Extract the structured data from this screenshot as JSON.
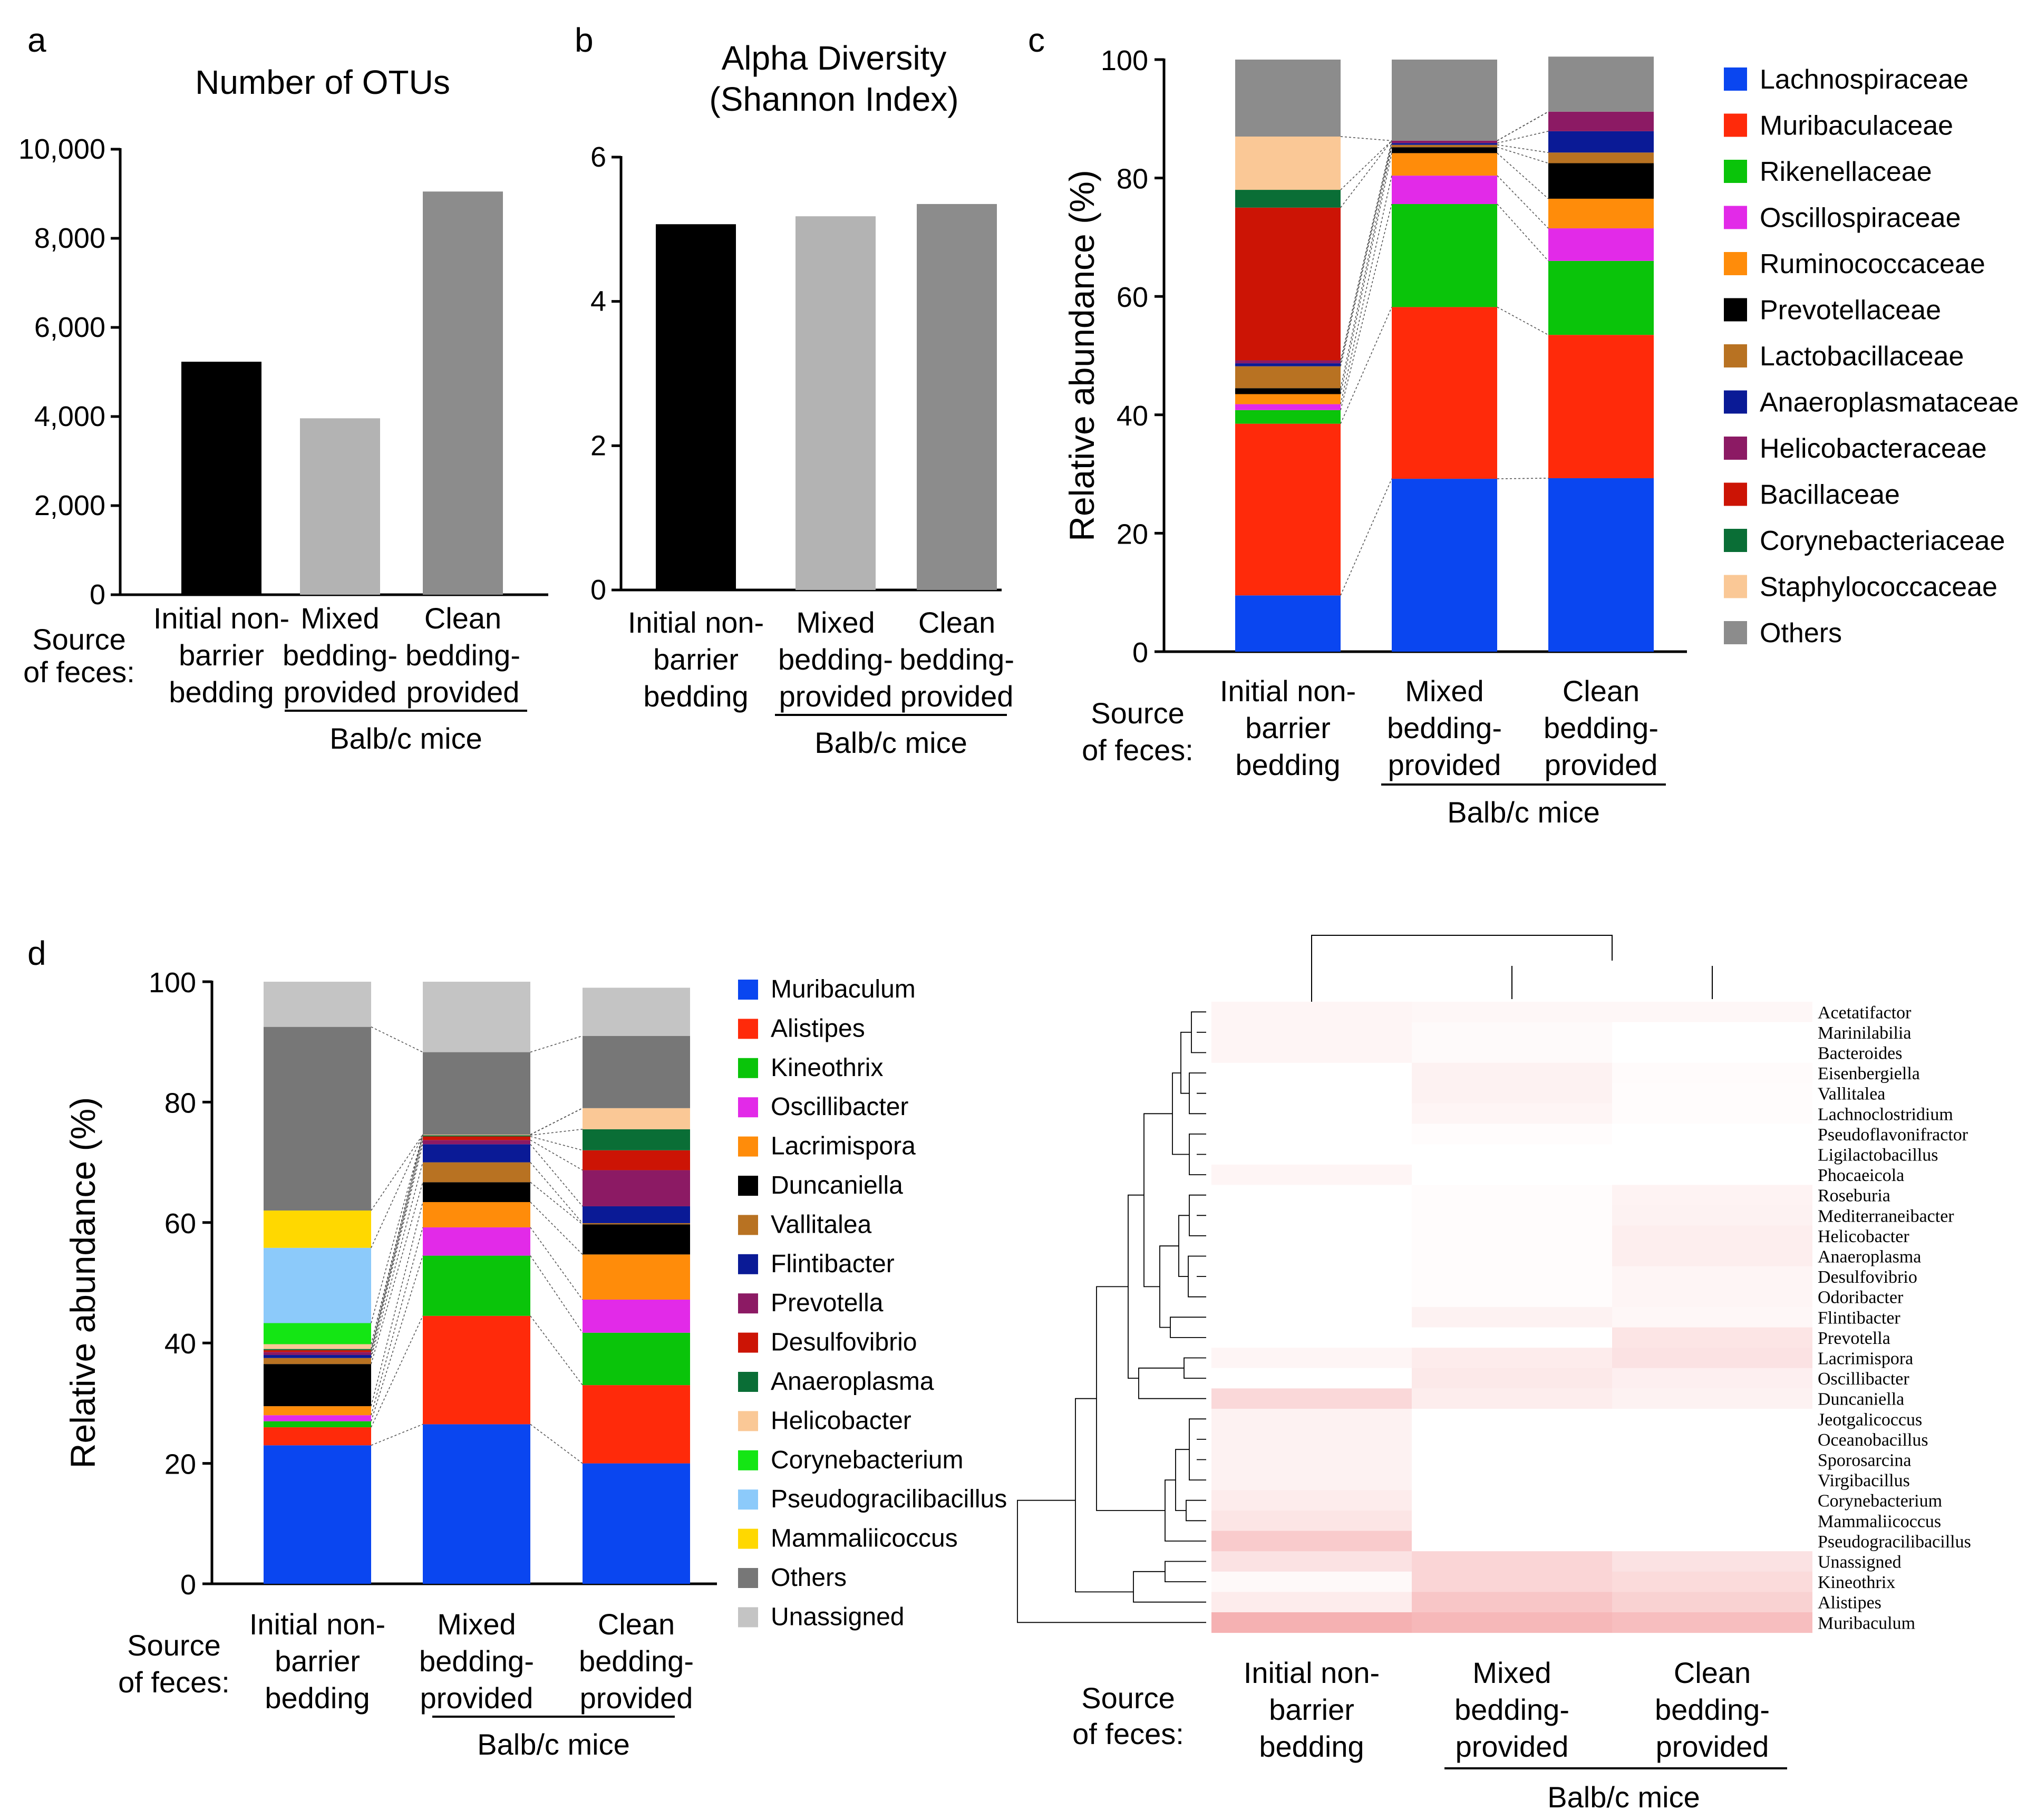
{
  "panel_a": {
    "letter": "a",
    "chart_data": {
      "type": "bar",
      "title": "Number of OTUs",
      "categories": [
        [
          "Initial non-",
          "barrier",
          "bedding"
        ],
        [
          "Mixed",
          "bedding-",
          "provided"
        ],
        [
          "Clean",
          "bedding-",
          "provided"
        ]
      ],
      "values": [
        5230,
        3960,
        9050
      ],
      "colors": [
        "#000000",
        "#b3b3b3",
        "#8c8c8c"
      ],
      "ylim": [
        0,
        10000
      ],
      "yticks": [
        0,
        2000,
        4000,
        6000,
        8000,
        10000
      ],
      "ytick_labels": [
        "0",
        "2,000",
        "4,000",
        "6,000",
        "8,000",
        "10,000"
      ],
      "source_label": [
        "Source",
        "of feces:"
      ],
      "group_label": "Balb/c mice"
    }
  },
  "panel_b": {
    "letter": "b",
    "chart_data": {
      "type": "bar",
      "title": [
        "Alpha Diversity",
        "(Shannon Index)"
      ],
      "categories": [
        [
          "Initial non-",
          "barrier",
          "bedding"
        ],
        [
          "Mixed",
          "bedding-",
          "provided"
        ],
        [
          "Clean",
          "bedding-",
          "provided"
        ]
      ],
      "values": [
        5.07,
        5.18,
        5.35
      ],
      "colors": [
        "#000000",
        "#b3b3b3",
        "#8c8c8c"
      ],
      "ylim": [
        0,
        6
      ],
      "yticks": [
        0,
        2,
        4,
        6
      ],
      "ytick_labels": [
        "0",
        "2",
        "4",
        "6"
      ],
      "source_label": [
        "Source",
        "of feces:"
      ],
      "group_label": "Balb/c mice"
    }
  },
  "panel_c": {
    "letter": "c",
    "chart_data": {
      "type": "stacked-bar",
      "ylabel": "Relative abundance (%)",
      "ylim": [
        0,
        100
      ],
      "yticks": [
        0,
        20,
        40,
        60,
        80,
        100
      ],
      "categories": [
        [
          "Initial non-",
          "barrier",
          "bedding"
        ],
        [
          "Mixed",
          "bedding-",
          "provided"
        ],
        [
          "Clean",
          "bedding-",
          "provided"
        ]
      ],
      "source_label": [
        "Source",
        "of feces:"
      ],
      "group_label": "Balb/c mice",
      "series": [
        {
          "name": "Lachnospiraceae",
          "color": "#0a46f0",
          "values": [
            9.5,
            29.2,
            29.3
          ]
        },
        {
          "name": "Muribaculaceae",
          "color": "#ff2a0a",
          "values": [
            29.0,
            29.0,
            24.2
          ]
        },
        {
          "name": "Rikenellaceae",
          "color": "#0ac40a",
          "values": [
            2.3,
            17.4,
            12.5
          ]
        },
        {
          "name": "Oscillospiraceae",
          "color": "#e22ae8",
          "values": [
            1.0,
            4.8,
            5.5
          ]
        },
        {
          "name": "Ruminococcaceae",
          "color": "#ff8c0a",
          "values": [
            1.7,
            3.8,
            5.0
          ]
        },
        {
          "name": "Prevotellaceae",
          "color": "#000000",
          "values": [
            1.0,
            1.0,
            6.0
          ]
        },
        {
          "name": "Lactobacillaceae",
          "color": "#b87222",
          "values": [
            3.7,
            0.4,
            1.8
          ]
        },
        {
          "name": "Anaeroplasmataceae",
          "color": "#0a1a96",
          "values": [
            0.5,
            0.3,
            3.6
          ]
        },
        {
          "name": "Helicobacteraceae",
          "color": "#8c1a64",
          "values": [
            0.5,
            0.4,
            3.3
          ]
        },
        {
          "name": "Bacillaceae",
          "color": "#cc1405",
          "values": [
            25.8,
            0,
            0
          ]
        },
        {
          "name": "Corynebacteriaceae",
          "color": "#0a6e36",
          "values": [
            3.0,
            0,
            0
          ]
        },
        {
          "name": "Staphylococcaceae",
          "color": "#fac896",
          "values": [
            9.0,
            0,
            0
          ]
        },
        {
          "name": "Others",
          "color": "#8c8c8c",
          "values": [
            13.0,
            13.7,
            9.3
          ]
        }
      ]
    }
  },
  "panel_d": {
    "letter": "d",
    "chart_data": {
      "type": "stacked-bar",
      "ylabel": "Relative abundance (%)",
      "ylim": [
        0,
        100
      ],
      "yticks": [
        0,
        20,
        40,
        60,
        80,
        100
      ],
      "categories": [
        [
          "Initial non-",
          "barrier",
          "bedding"
        ],
        [
          "Mixed",
          "bedding-",
          "provided"
        ],
        [
          "Clean",
          "bedding-",
          "provided"
        ]
      ],
      "source_label": [
        "Source",
        "of feces:"
      ],
      "group_label": "Balb/c mice",
      "series": [
        {
          "name": "Muribaculum",
          "color": "#0a46f0",
          "values": [
            23.0,
            26.5,
            20.0
          ]
        },
        {
          "name": "Alistipes",
          "color": "#ff2a0a",
          "values": [
            3.0,
            18.0,
            13.0
          ]
        },
        {
          "name": "Kineothrix",
          "color": "#0ac40a",
          "values": [
            1.0,
            10.0,
            8.7
          ]
        },
        {
          "name": "Oscillibacter",
          "color": "#e22ae8",
          "values": [
            1.0,
            4.7,
            5.5
          ]
        },
        {
          "name": "Lacrimispora",
          "color": "#ff8c0a",
          "values": [
            1.5,
            4.2,
            7.5
          ]
        },
        {
          "name": "Duncaniella",
          "color": "#000000",
          "values": [
            7.0,
            3.3,
            5.0
          ]
        },
        {
          "name": "Vallitalea",
          "color": "#b87222",
          "values": [
            1.0,
            3.3,
            0.2
          ]
        },
        {
          "name": "Flintibacter",
          "color": "#0a1a96",
          "values": [
            0.5,
            3.0,
            2.8
          ]
        },
        {
          "name": "Prevotella",
          "color": "#8c1a64",
          "values": [
            0.5,
            0.7,
            6.0
          ]
        },
        {
          "name": "Desulfovibrio",
          "color": "#cc1405",
          "values": [
            0.3,
            0.6,
            3.3
          ]
        },
        {
          "name": "Anaeroplasma",
          "color": "#0a6e36",
          "values": [
            0.2,
            0.2,
            3.5
          ]
        },
        {
          "name": "Helicobacter",
          "color": "#fac896",
          "values": [
            0.8,
            0.1,
            3.5
          ]
        },
        {
          "name": "Corynebacterium",
          "color": "#14e614",
          "values": [
            3.5,
            0,
            0
          ]
        },
        {
          "name": "Pseudogracilibacillus",
          "color": "#8ccafa",
          "values": [
            12.5,
            0,
            0
          ]
        },
        {
          "name": "Mammaliicoccus",
          "color": "#ffd800",
          "values": [
            6.2,
            0,
            0
          ]
        },
        {
          "name": "Others",
          "color": "#777777",
          "values": [
            30.5,
            13.7,
            12.0
          ]
        },
        {
          "name": "Unassigned",
          "color": "#c4c4c4",
          "values": [
            7.5,
            11.7,
            8.0
          ]
        }
      ]
    }
  },
  "heatmap": {
    "chart_data": {
      "type": "heatmap",
      "columns": [
        [
          "Initial non-",
          "barrier",
          "bedding"
        ],
        [
          "Mixed",
          "bedding-",
          "provided"
        ],
        [
          "Clean",
          "bedding-",
          "provided"
        ]
      ],
      "source_label": [
        "Source",
        "of feces:"
      ],
      "group_label": "Balb/c mice",
      "color_low": "#ffffff",
      "color_high": "#ef7d7f",
      "rows": [
        {
          "name": "Acetatifactor",
          "values": [
            0.08,
            0.06,
            0.06
          ]
        },
        {
          "name": "Marinilabilia",
          "values": [
            0.08,
            0.04,
            0.0
          ]
        },
        {
          "name": "Bacteroides",
          "values": [
            0.08,
            0.04,
            0.0
          ]
        },
        {
          "name": "Eisenbergiella",
          "values": [
            0.0,
            0.1,
            0.03
          ]
        },
        {
          "name": "Vallitalea",
          "values": [
            0.0,
            0.1,
            0.02
          ]
        },
        {
          "name": "Lachnoclostridium",
          "values": [
            0.0,
            0.08,
            0.02
          ]
        },
        {
          "name": "Pseudoflavonifractor",
          "values": [
            0.0,
            0.02,
            0.0
          ]
        },
        {
          "name": "Ligilactobacillus",
          "values": [
            0.0,
            0.0,
            0.0
          ]
        },
        {
          "name": "Phocaeicola",
          "values": [
            0.08,
            0.0,
            0.0
          ]
        },
        {
          "name": "Roseburia",
          "values": [
            0.0,
            0.02,
            0.09
          ]
        },
        {
          "name": "Mediterraneibacter",
          "values": [
            0.0,
            0.02,
            0.1
          ]
        },
        {
          "name": "Helicobacter",
          "values": [
            0.0,
            0.02,
            0.13
          ]
        },
        {
          "name": "Anaeroplasma",
          "values": [
            0.0,
            0.02,
            0.13
          ]
        },
        {
          "name": "Desulfovibrio",
          "values": [
            0.0,
            0.02,
            0.08
          ]
        },
        {
          "name": "Odoribacter",
          "values": [
            0.0,
            0.02,
            0.08
          ]
        },
        {
          "name": "Flintibacter",
          "values": [
            0.0,
            0.1,
            0.06
          ]
        },
        {
          "name": "Prevotella",
          "values": [
            0.0,
            0.0,
            0.2
          ]
        },
        {
          "name": "Lacrimispora",
          "values": [
            0.08,
            0.15,
            0.22
          ]
        },
        {
          "name": "Oscillibacter",
          "values": [
            0.0,
            0.17,
            0.12
          ]
        },
        {
          "name": "Duncaniella",
          "values": [
            0.3,
            0.14,
            0.1
          ]
        },
        {
          "name": "Jeotgalicoccus",
          "values": [
            0.1,
            0.0,
            0.0
          ]
        },
        {
          "name": "Oceanobacillus",
          "values": [
            0.1,
            0.0,
            0.0
          ]
        },
        {
          "name": "Sporosarcina",
          "values": [
            0.1,
            0.0,
            0.0
          ]
        },
        {
          "name": "Virgibacillus",
          "values": [
            0.1,
            0.0,
            0.0
          ]
        },
        {
          "name": "Corynebacterium",
          "values": [
            0.15,
            0.0,
            0.0
          ]
        },
        {
          "name": "Mammaliicoccus",
          "values": [
            0.2,
            0.0,
            0.0
          ]
        },
        {
          "name": "Pseudogracilibacillus",
          "values": [
            0.4,
            0.0,
            0.0
          ]
        },
        {
          "name": "Unassigned",
          "values": [
            0.22,
            0.32,
            0.22
          ]
        },
        {
          "name": "Kineothrix",
          "values": [
            0.05,
            0.32,
            0.28
          ]
        },
        {
          "name": "Alistipes",
          "values": [
            0.15,
            0.44,
            0.35
          ]
        },
        {
          "name": "Muribaculum",
          "values": [
            0.6,
            0.55,
            0.5
          ]
        }
      ]
    }
  }
}
